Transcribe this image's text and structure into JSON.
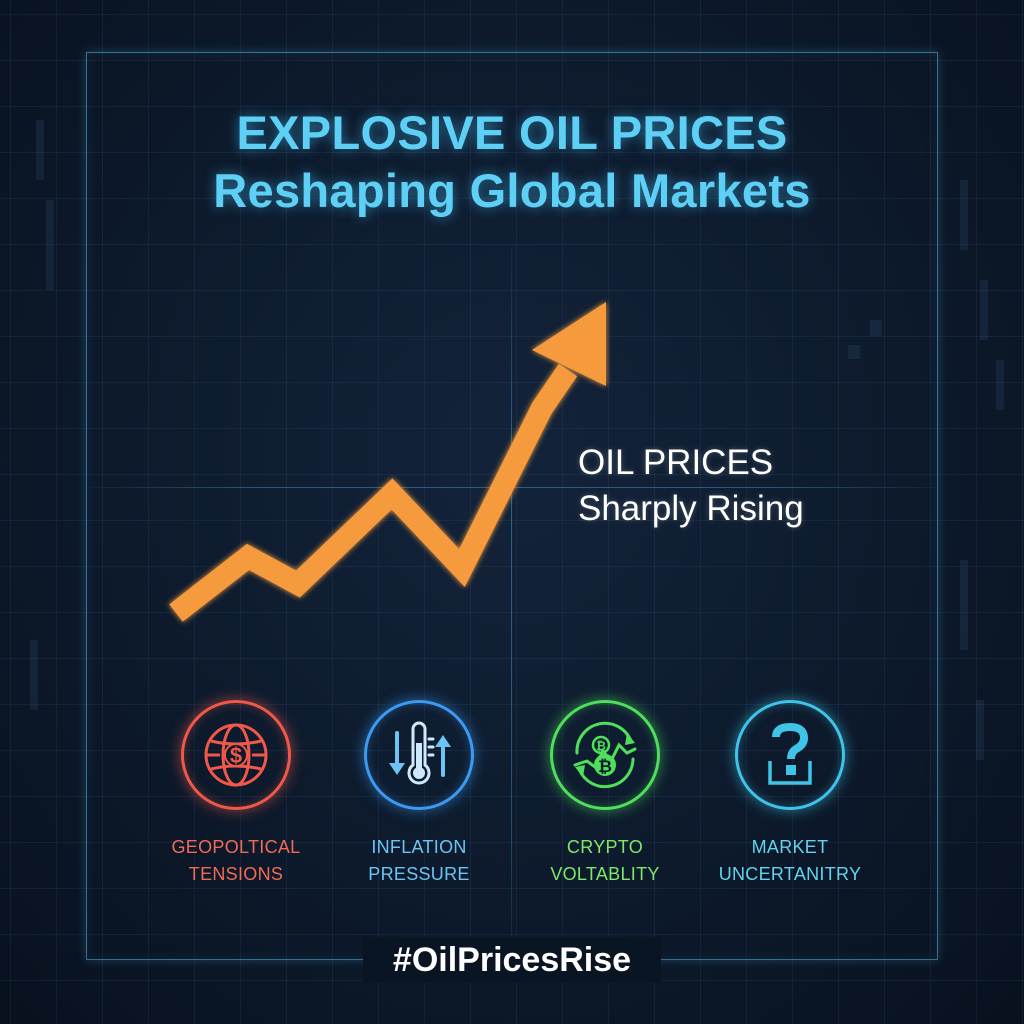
{
  "headline": {
    "line1": "EXPLOSIVE OIL PRICES",
    "line2": "Reshaping Global Markets"
  },
  "callout": {
    "line1": "OIL PRICES",
    "line2": "Sharply Rising"
  },
  "trend_arrow": {
    "color": "#f59a3e",
    "direction": "up"
  },
  "factors": [
    {
      "icon": "globe-dollar-icon",
      "line1": "GEOPOLTICAL",
      "line2": "TENSIONS",
      "color": "#f0584a"
    },
    {
      "icon": "thermometer-arrows-icon",
      "line1": "INFLATION",
      "line2": "PRESSURE",
      "color": "#3b9bf2"
    },
    {
      "icon": "bitcoin-swirl-icon",
      "line1": "CRYPTO",
      "line2": "VOLTABLITY",
      "color": "#4ee05a"
    },
    {
      "icon": "question-box-icon",
      "line1": "MARKET",
      "line2": "UNCERTANITRY",
      "color": "#3fc4e8"
    }
  ],
  "hashtag": "#OilPricesRise",
  "colors": {
    "background": "#0d1a2c",
    "headline": "#5fd0f5",
    "frame": "#5abee6"
  }
}
